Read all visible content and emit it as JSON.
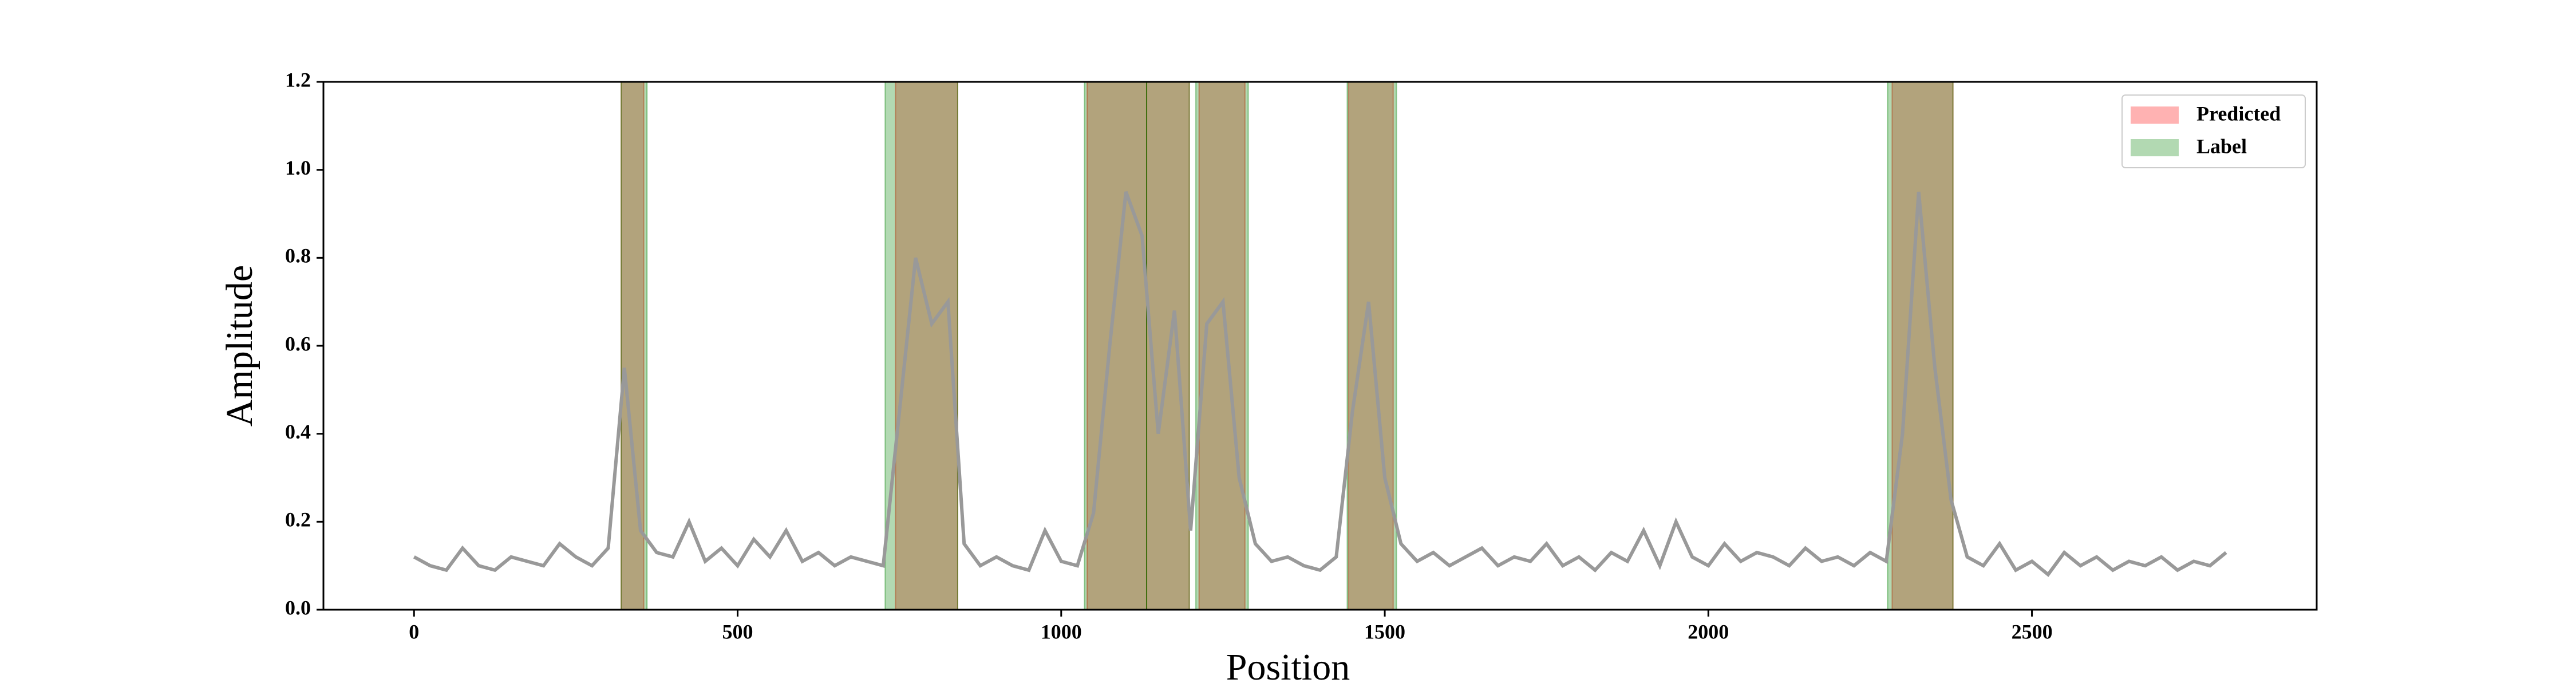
{
  "chart_data": {
    "type": "line",
    "xlabel": "Position",
    "ylabel": "Amplitude",
    "xlim": [
      -140,
      2940
    ],
    "ylim": [
      0,
      1.2
    ],
    "xticks": [
      0,
      500,
      1000,
      1500,
      2000,
      2500
    ],
    "yticks": [
      {
        "value": 0,
        "label": "0.0"
      },
      {
        "value": 0.2,
        "label": "0.2"
      },
      {
        "value": 0.4,
        "label": "0.4"
      },
      {
        "value": 0.6,
        "label": "0.6"
      },
      {
        "value": 0.8,
        "label": "0.8"
      },
      {
        "value": 1.0,
        "label": "1.0"
      },
      {
        "value": 1.2,
        "label": "1.2"
      }
    ],
    "legend": "upper right",
    "x": [
      0,
      25,
      50,
      75,
      100,
      125,
      150,
      175,
      200,
      225,
      250,
      275,
      300,
      325,
      350,
      375,
      400,
      425,
      450,
      475,
      500,
      525,
      550,
      575,
      600,
      625,
      650,
      675,
      700,
      725,
      750,
      775,
      800,
      825,
      850,
      875,
      900,
      925,
      950,
      975,
      1000,
      1025,
      1050,
      1075,
      1100,
      1125,
      1150,
      1175,
      1200,
      1225,
      1250,
      1275,
      1300,
      1325,
      1350,
      1375,
      1400,
      1425,
      1450,
      1475,
      1500,
      1525,
      1550,
      1575,
      1600,
      1625,
      1650,
      1675,
      1700,
      1725,
      1750,
      1775,
      1800,
      1825,
      1850,
      1875,
      1900,
      1925,
      1950,
      1975,
      2000,
      2025,
      2050,
      2075,
      2100,
      2125,
      2150,
      2175,
      2200,
      2225,
      2250,
      2275,
      2300,
      2325,
      2350,
      2375,
      2400,
      2425,
      2450,
      2475,
      2500,
      2525,
      2550,
      2575,
      2600,
      2625,
      2650,
      2675,
      2700,
      2725,
      2750,
      2775,
      2800
    ],
    "series": [
      {
        "color": "#999999",
        "values": [
          0.12,
          0.1,
          0.09,
          0.14,
          0.1,
          0.09,
          0.12,
          0.11,
          0.1,
          0.15,
          0.12,
          0.1,
          0.14,
          0.55,
          0.18,
          0.13,
          0.12,
          0.2,
          0.11,
          0.14,
          0.1,
          0.16,
          0.12,
          0.18,
          0.11,
          0.13,
          0.1,
          0.12,
          0.11,
          0.1,
          0.45,
          0.8,
          0.65,
          0.7,
          0.15,
          0.1,
          0.12,
          0.1,
          0.09,
          0.18,
          0.11,
          0.1,
          0.22,
          0.6,
          0.95,
          0.85,
          0.4,
          0.68,
          0.18,
          0.65,
          0.7,
          0.3,
          0.15,
          0.11,
          0.12,
          0.1,
          0.09,
          0.12,
          0.45,
          0.7,
          0.3,
          0.15,
          0.11,
          0.13,
          0.1,
          0.12,
          0.14,
          0.1,
          0.12,
          0.11,
          0.15,
          0.1,
          0.12,
          0.09,
          0.13,
          0.11,
          0.18,
          0.1,
          0.2,
          0.12,
          0.1,
          0.15,
          0.11,
          0.13,
          0.12,
          0.1,
          0.14,
          0.11,
          0.12,
          0.1,
          0.13,
          0.11,
          0.4,
          0.95,
          0.55,
          0.25,
          0.12,
          0.1,
          0.15,
          0.09,
          0.11,
          0.08,
          0.13,
          0.1,
          0.12,
          0.09,
          0.11,
          0.1,
          0.12,
          0.09,
          0.11,
          0.1,
          0.13
        ]
      }
    ],
    "spans": [
      {
        "name": "Predicted",
        "color": "#ff0000",
        "intervals": [
          [
            320,
            355
          ],
          [
            744,
            840
          ],
          [
            1040,
            1132
          ],
          [
            1132,
            1198
          ],
          [
            1213,
            1284
          ],
          [
            1444,
            1513
          ],
          [
            2284,
            2378
          ]
        ]
      },
      {
        "name": "Label",
        "color": "#008000",
        "intervals": [
          [
            320,
            360
          ],
          [
            728,
            840
          ],
          [
            1036,
            1132
          ],
          [
            1132,
            1198
          ],
          [
            1208,
            1289
          ],
          [
            1442,
            1518
          ],
          [
            2277,
            2378
          ]
        ]
      }
    ]
  }
}
